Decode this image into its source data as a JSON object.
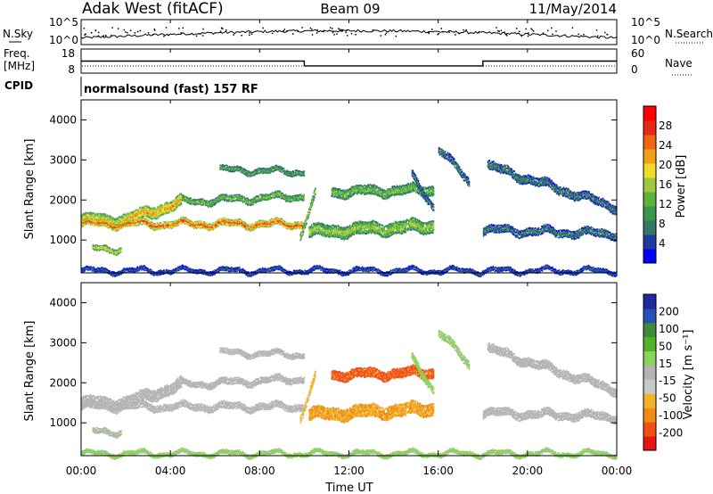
{
  "header": {
    "station": "Adak West (fitACF)",
    "beam": "Beam 09",
    "date": "11/May/2014"
  },
  "sky_panel": {
    "left_label": "N.Sky",
    "right_label": "N.Search",
    "left_ticks": [
      "10^5",
      "10^0"
    ],
    "right_ticks": [
      "10^5",
      "10^0"
    ]
  },
  "freq_panel": {
    "left_label_1": "Freq.",
    "left_label_2": "[MHz]",
    "right_label": "Nave",
    "left_ticks": [
      "18",
      "8"
    ],
    "right_ticks": [
      "60",
      "0"
    ]
  },
  "cpid": {
    "label": "CPID",
    "text": "normalsound (fast) 157 RF"
  },
  "power_panel": {
    "ylabel": "Slant Range [km]",
    "yticks": [
      "4000",
      "3000",
      "2000",
      "1000"
    ],
    "colorbar_label": "Power [dB]",
    "colorbar_ticks": [
      "28",
      "24",
      "20",
      "16",
      "12",
      "8",
      "4"
    ],
    "colors": [
      "#0000ff",
      "#1e3ca0",
      "#327864",
      "#3c9650",
      "#5ab43c",
      "#a0c83c",
      "#f0dc28",
      "#f0a014",
      "#f06414",
      "#e62814",
      "#ff0000"
    ]
  },
  "velocity_panel": {
    "ylabel": "Slant Range [km]",
    "yticks": [
      "4000",
      "3000",
      "2000",
      "1000"
    ],
    "colorbar_label": "Velocity [m s⁻¹]",
    "colorbar_ticks": [
      "200",
      "100",
      "50",
      "15",
      "-15",
      "-50",
      "-100",
      "-200"
    ],
    "colors": [
      "#1e28a0",
      "#2850b4",
      "#3c8c3c",
      "#50b428",
      "#8cd25a",
      "#b4b4b4",
      "#c8c8c8",
      "#f0b428",
      "#f08c14",
      "#f05014",
      "#e61414"
    ]
  },
  "xaxis": {
    "label": "Time UT",
    "ticks": [
      "00:00",
      "04:00",
      "08:00",
      "12:00",
      "16:00",
      "20:00",
      "00:00"
    ]
  },
  "chart_data": {
    "type": "heatmap",
    "x_range_hours": [
      0,
      24
    ],
    "y_range_km": [
      180,
      4500
    ],
    "freq_steps": [
      {
        "start": 0,
        "end": 10,
        "freq_mhz": 13
      },
      {
        "start": 10,
        "end": 18,
        "freq_mhz": 11
      },
      {
        "start": 18,
        "end": 24,
        "freq_mhz": 13
      }
    ],
    "echo_bands": [
      {
        "t0": 0.0,
        "t1": 2.0,
        "r0": 1500,
        "r1": 1500,
        "w": 230,
        "pw": 20,
        "vel": -5
      },
      {
        "t0": 2.0,
        "t1": 4.5,
        "r0": 1500,
        "r1": 1950,
        "w": 240,
        "pw": 22,
        "vel": -5
      },
      {
        "t0": 4.5,
        "t1": 10.0,
        "r0": 1950,
        "r1": 2100,
        "w": 130,
        "pw": 14,
        "vel": -5
      },
      {
        "t0": 0.0,
        "t1": 10.0,
        "r0": 1400,
        "r1": 1400,
        "w": 140,
        "pw": 26,
        "vel": -8
      },
      {
        "t0": 0.5,
        "t1": 1.8,
        "r0": 780,
        "r1": 780,
        "w": 110,
        "pw": 18,
        "vel": 10
      },
      {
        "t0": 6.2,
        "t1": 10.0,
        "r0": 2750,
        "r1": 2700,
        "w": 110,
        "pw": 12,
        "vel": -8
      },
      {
        "t0": 9.8,
        "t1": 10.5,
        "r0": 1100,
        "r1": 2200,
        "w": 160,
        "pw": 16,
        "vel": -70
      },
      {
        "t0": 10.2,
        "t1": 15.8,
        "r0": 1200,
        "r1": 1350,
        "w": 260,
        "pw": 16,
        "vel": -100
      },
      {
        "t0": 11.2,
        "t1": 15.8,
        "r0": 2200,
        "r1": 2250,
        "w": 200,
        "pw": 14,
        "vel": -150
      },
      {
        "t0": 14.8,
        "t1": 15.8,
        "r0": 2600,
        "r1": 1800,
        "w": 150,
        "pw": 8,
        "vel": 40
      },
      {
        "t0": 16.0,
        "t1": 17.4,
        "r0": 3300,
        "r1": 2400,
        "w": 160,
        "pw": 8,
        "vel": 30
      },
      {
        "t0": 18.2,
        "t1": 24.0,
        "r0": 2850,
        "r1": 1800,
        "w": 180,
        "pw": 8,
        "vel": -5
      },
      {
        "t0": 18.0,
        "t1": 24.0,
        "r0": 1250,
        "r1": 1150,
        "w": 160,
        "pw": 8,
        "vel": -5
      },
      {
        "t0": 0.0,
        "t1": 24.0,
        "r0": 230,
        "r1": 230,
        "w": 80,
        "pw": 6,
        "vel": 30
      }
    ]
  }
}
